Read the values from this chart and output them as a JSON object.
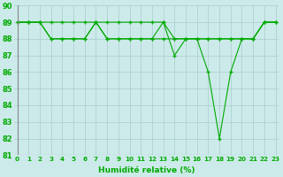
{
  "line1": [
    89,
    89,
    89,
    88,
    88,
    88,
    88,
    89,
    88,
    88,
    88,
    88,
    88,
    89,
    87,
    88,
    88,
    86,
    82,
    86,
    88,
    88,
    89,
    89
  ],
  "line2": [
    89,
    89,
    89,
    88,
    88,
    88,
    88,
    89,
    88,
    88,
    88,
    88,
    88,
    88,
    88,
    88,
    88,
    88,
    88,
    88,
    88,
    88,
    89,
    89
  ],
  "line3": [
    89,
    89,
    89,
    89,
    89,
    89,
    89,
    89,
    89,
    89,
    89,
    89,
    89,
    89,
    88,
    88,
    88,
    88,
    88,
    88,
    88,
    88,
    89,
    89
  ],
  "x": [
    0,
    1,
    2,
    3,
    4,
    5,
    6,
    7,
    8,
    9,
    10,
    11,
    12,
    13,
    14,
    15,
    16,
    17,
    18,
    19,
    20,
    21,
    22,
    23
  ],
  "line_color": "#00aa00",
  "bg_color": "#cceaea",
  "grid_color": "#aacccc",
  "xlabel": "Humidité relative (%)",
  "ylim": [
    81,
    90
  ],
  "xlim_min": -0.3,
  "xlim_max": 23.3,
  "yticks": [
    81,
    82,
    83,
    84,
    85,
    86,
    87,
    88,
    89,
    90
  ],
  "xtick_labels": [
    "0",
    "1",
    "2",
    "3",
    "4",
    "5",
    "6",
    "7",
    "8",
    "9",
    "10",
    "11",
    "12",
    "13",
    "14",
    "15",
    "16",
    "17",
    "18",
    "19",
    "20",
    "21",
    "22",
    "23"
  ],
  "xlabel_fontsize": 6.5,
  "ytick_fontsize": 6,
  "xtick_fontsize": 5.2
}
